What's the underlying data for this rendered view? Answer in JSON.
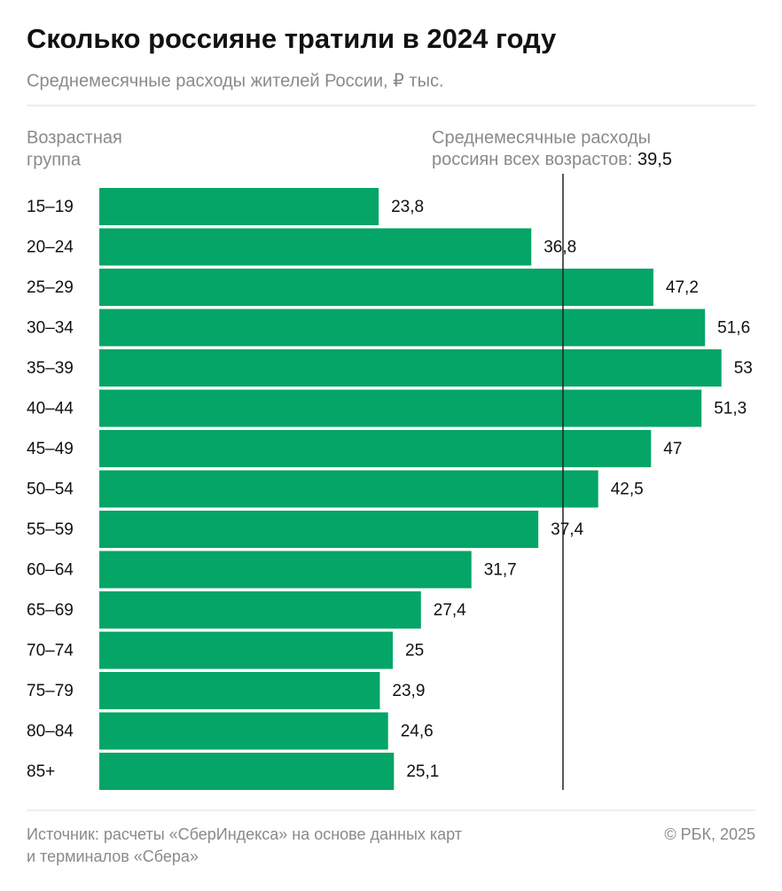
{
  "chart_data": {
    "type": "bar",
    "orientation": "horizontal",
    "title": "Сколько россияне тратили в 2024 году",
    "subtitle": "Среднемесячные расходы жителей России, ₽ тыс.",
    "category_axis_label": [
      "Возрастная",
      "группа"
    ],
    "categories": [
      "15–19",
      "20–24",
      "25–29",
      "30–34",
      "35–39",
      "40–44",
      "45–49",
      "50–54",
      "55–59",
      "60–64",
      "65–69",
      "70–74",
      "75–79",
      "80–84",
      "85+"
    ],
    "values": [
      23.8,
      36.8,
      47.2,
      51.6,
      53,
      51.3,
      47,
      42.5,
      37.4,
      31.7,
      27.4,
      25,
      23.9,
      24.6,
      25.1
    ],
    "value_labels": [
      "23,8",
      "36,8",
      "47,2",
      "51,6",
      "53",
      "51,3",
      "47",
      "42,5",
      "37,4",
      "31,7",
      "27,4",
      "25",
      "23,9",
      "24,6",
      "25,1"
    ],
    "color": "#04a566",
    "reference": {
      "value": 39.5,
      "label": [
        "Среднемесячные расходы",
        "россиян всех возрастов:"
      ],
      "value_label": "39,5"
    },
    "source": [
      "Источник: расчеты «СберИндекса» на основе данных карт",
      "и терминалов «Сбера»"
    ],
    "credit": "© РБК, 2025"
  }
}
